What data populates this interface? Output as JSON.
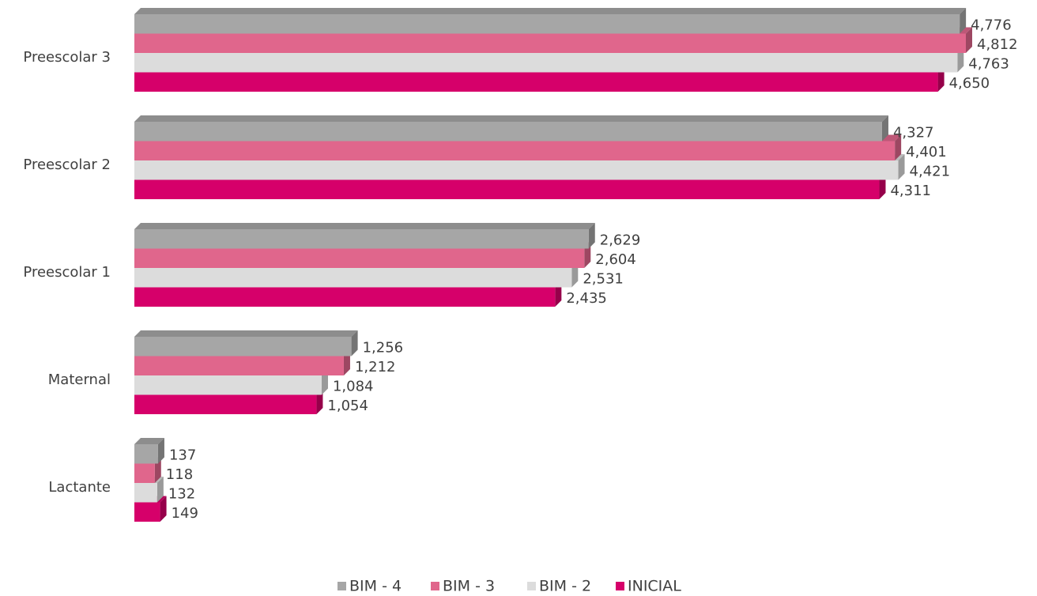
{
  "chart_data": {
    "type": "bar3d_horizontal",
    "categories": [
      "Preescolar 3",
      "Preescolar 2",
      "Preescolar 1",
      "Maternal",
      "Lactante"
    ],
    "series": [
      {
        "name": "BIM - 4",
        "color": "#a6a6a6",
        "values": [
          4776,
          4327,
          2629,
          1256,
          137
        ],
        "value_labels": [
          "4,776",
          "4,327",
          "2,629",
          "1,256",
          "137"
        ]
      },
      {
        "name": "BIM - 3",
        "color": "#e0668c",
        "values": [
          4812,
          4401,
          2604,
          1212,
          118
        ],
        "value_labels": [
          "4,812",
          "4,401",
          "2,604",
          "1,212",
          "118"
        ]
      },
      {
        "name": "BIM - 2",
        "color": "#dcdcdc",
        "values": [
          4763,
          4421,
          2531,
          1084,
          132
        ],
        "value_labels": [
          "4,763",
          "4,421",
          "2,531",
          "1,084",
          "132"
        ]
      },
      {
        "name": "INICIAL",
        "color": "#d6006a",
        "values": [
          4650,
          4311,
          2435,
          1054,
          149
        ],
        "value_labels": [
          "4,650",
          "4,311",
          "2,435",
          "1,054",
          "149"
        ]
      }
    ],
    "legend": "bottom"
  }
}
